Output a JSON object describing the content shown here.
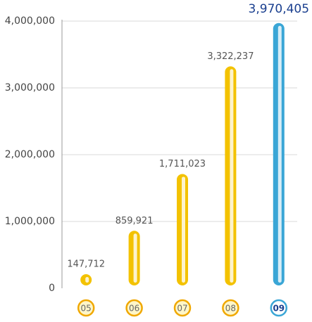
{
  "chart_data": {
    "type": "bar",
    "categories": [
      "05",
      "06",
      "07",
      "08",
      "09"
    ],
    "values": [
      147712,
      859921,
      1711023,
      3322237,
      3970405
    ],
    "value_labels": [
      "147,712",
      "859,921",
      "1,711,023",
      "3,322,237",
      "3,970,405"
    ],
    "colors": [
      "#f3c200",
      "#f3c200",
      "#f3c200",
      "#f3c200",
      "#3aa6d6"
    ],
    "ylim": [
      0,
      4000000
    ],
    "yticks": [
      0,
      {
        "value": 1000000,
        "label": "1,000,000"
      },
      {
        "value": 2000000,
        "label": "2,000,000"
      },
      {
        "value": 3000000,
        "label": "3,000,000"
      },
      {
        "value": 4000000,
        "label": "4,000,000"
      }
    ],
    "grid": true
  }
}
